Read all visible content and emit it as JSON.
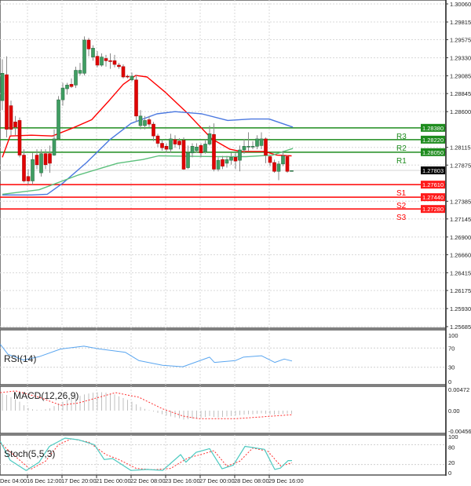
{
  "chart_data": {
    "type": "candlestick",
    "symbol_price_current": "1.27803",
    "price_axis": {
      "ylim": [
        1.25685,
        1.3006
      ],
      "ticks": [
        "1.30060",
        "1.29815",
        "1.29575",
        "1.29330",
        "1.29085",
        "1.28845",
        "1.28600",
        "1.28115",
        "1.27875",
        "1.27385",
        "1.27145",
        "1.26900",
        "1.26660",
        "1.26415",
        "1.26175",
        "1.25930",
        "1.25685"
      ]
    },
    "time_axis": {
      "labels": [
        "Dec 04:00",
        "16 Dec 12:00",
        "17 Dec 20:00",
        "21 Dec 00:00",
        "22 Dec 08:00",
        "23 Dec 16:00",
        "27 Dec 00:00",
        "28 Dec 08:00",
        "29 Dec 16:00"
      ],
      "label_candle_index": [
        0,
        7,
        15,
        23,
        31,
        39,
        47,
        55,
        63
      ]
    },
    "candles_ohlc": [
      [
        1.2875,
        1.2931,
        1.2862,
        1.2912
      ],
      [
        1.291,
        1.2935,
        1.2825,
        1.2836
      ],
      [
        1.2868,
        1.2875,
        1.2828,
        1.2836
      ],
      [
        1.2846,
        1.2854,
        1.2828,
        1.2839
      ],
      [
        1.2848,
        1.2852,
        1.2798,
        1.2801
      ],
      [
        1.2801,
        1.2809,
        1.2764,
        1.2766
      ],
      [
        1.2772,
        1.2782,
        1.2761,
        1.2766
      ],
      [
        1.2766,
        1.2804,
        1.2761,
        1.2795
      ],
      [
        1.2801,
        1.2809,
        1.2782,
        1.2788
      ],
      [
        1.2777,
        1.2809,
        1.2772,
        1.2803
      ],
      [
        1.2803,
        1.2809,
        1.2782,
        1.2788
      ],
      [
        1.2803,
        1.2814,
        1.2777,
        1.279
      ],
      [
        1.2801,
        1.2836,
        1.28,
        1.2823
      ],
      [
        1.2823,
        1.2881,
        1.2822,
        1.2876
      ],
      [
        1.2876,
        1.2899,
        1.2868,
        1.2892
      ],
      [
        1.2891,
        1.2899,
        1.2883,
        1.2896
      ],
      [
        1.2897,
        1.2905,
        1.2892,
        1.2894
      ],
      [
        1.2896,
        1.2921,
        1.2892,
        1.2916
      ],
      [
        1.2912,
        1.2926,
        1.2909,
        1.2916
      ],
      [
        1.2912,
        1.2962,
        1.2909,
        1.2957
      ],
      [
        1.2957,
        1.296,
        1.2935,
        1.2945
      ],
      [
        1.2934,
        1.295,
        1.2929,
        1.2946
      ],
      [
        1.2935,
        1.2942,
        1.292,
        1.2923
      ],
      [
        1.2923,
        1.2939,
        1.2921,
        1.2934
      ],
      [
        1.2932,
        1.2937,
        1.2921,
        1.2929
      ],
      [
        1.2929,
        1.2939,
        1.2918,
        1.2928
      ],
      [
        1.2929,
        1.2937,
        1.292,
        1.2924
      ],
      [
        1.2923,
        1.2926,
        1.2918,
        1.2921
      ],
      [
        1.2921,
        1.2924,
        1.2905,
        1.2907
      ],
      [
        1.2908,
        1.291,
        1.2905,
        1.2907
      ],
      [
        1.2903,
        1.2913,
        1.2901,
        1.2908
      ],
      [
        1.2903,
        1.291,
        1.2846,
        1.2854
      ],
      [
        1.2841,
        1.2862,
        1.2836,
        1.2854
      ],
      [
        1.2841,
        1.2854,
        1.2836,
        1.2848
      ],
      [
        1.2849,
        1.2854,
        1.2839,
        1.2843
      ],
      [
        1.2843,
        1.2846,
        1.282,
        1.2827
      ],
      [
        1.2827,
        1.283,
        1.2812,
        1.2817
      ],
      [
        1.2817,
        1.2822,
        1.2807,
        1.2811
      ],
      [
        1.2813,
        1.2817,
        1.2804,
        1.2809
      ],
      [
        1.2809,
        1.283,
        1.2804,
        1.2823
      ],
      [
        1.2822,
        1.2828,
        1.2811,
        1.2816
      ],
      [
        1.282,
        1.2824,
        1.2809,
        1.2815
      ],
      [
        1.2821,
        1.2825,
        1.2781,
        1.2782
      ],
      [
        1.2784,
        1.2814,
        1.2782,
        1.2804
      ],
      [
        1.2804,
        1.2817,
        1.2798,
        1.2813
      ],
      [
        1.2807,
        1.2817,
        1.2804,
        1.2812
      ],
      [
        1.2814,
        1.2817,
        1.2798,
        1.2804
      ],
      [
        1.2806,
        1.2822,
        1.2803,
        1.2816
      ],
      [
        1.2816,
        1.2841,
        1.2814,
        1.283
      ],
      [
        1.2829,
        1.2844,
        1.2779,
        1.2782
      ],
      [
        1.2782,
        1.2798,
        1.2779,
        1.2794
      ],
      [
        1.2795,
        1.28,
        1.2782,
        1.2786
      ],
      [
        1.279,
        1.28,
        1.2784,
        1.2795
      ],
      [
        1.2794,
        1.2804,
        1.2788,
        1.2798
      ],
      [
        1.2798,
        1.2804,
        1.2782,
        1.2793
      ],
      [
        1.2794,
        1.2814,
        1.2779,
        1.2808
      ],
      [
        1.2808,
        1.2823,
        1.2803,
        1.2813
      ],
      [
        1.2813,
        1.2832,
        1.2807,
        1.2813
      ],
      [
        1.2813,
        1.282,
        1.2809,
        1.2813
      ],
      [
        1.2813,
        1.2828,
        1.2809,
        1.2823
      ],
      [
        1.2814,
        1.2832,
        1.2809,
        1.2823
      ],
      [
        1.2823,
        1.2825,
        1.279,
        1.2801
      ],
      [
        1.2799,
        1.2801,
        1.2786,
        1.2791
      ],
      [
        1.2791,
        1.2795,
        1.2777,
        1.2779
      ],
      [
        1.2779,
        1.2793,
        1.2767,
        1.2789
      ],
      [
        1.2789,
        1.2807,
        1.2786,
        1.28
      ],
      [
        1.2799,
        1.2801,
        1.2777,
        1.2779
      ],
      [
        1.278,
        1.278,
        1.278,
        1.278
      ]
    ],
    "moving_averages": [
      {
        "color": "#ff0000",
        "points": [
          [
            1,
            1.2798
          ],
          [
            2.8,
            1.2827
          ],
          [
            7.7,
            1.2828
          ],
          [
            12.6,
            1.2827
          ],
          [
            17.4,
            1.2838
          ],
          [
            21.7,
            1.2849
          ],
          [
            25.9,
            1.2876
          ],
          [
            29,
            1.2897
          ],
          [
            31.9,
            1.2909
          ],
          [
            34.5,
            1.2907
          ],
          [
            38.6,
            1.2887
          ],
          [
            43.5,
            1.286
          ],
          [
            49.5,
            1.2823
          ],
          [
            53.7,
            1.2809
          ],
          [
            56.3,
            1.2806
          ],
          [
            61.7,
            1.2806
          ],
          [
            64.6,
            1.2801
          ],
          [
            68,
            1.28
          ]
        ]
      },
      {
        "color": "#4a78e0",
        "points": [
          [
            1,
            1.2747
          ],
          [
            7.7,
            1.2747
          ],
          [
            11.4,
            1.2748
          ],
          [
            15,
            1.2763
          ],
          [
            20.5,
            1.2791
          ],
          [
            25.9,
            1.2822
          ],
          [
            30.8,
            1.2844
          ],
          [
            36.8,
            1.2857
          ],
          [
            41,
            1.286
          ],
          [
            47.2,
            1.2857
          ],
          [
            53.2,
            1.2848
          ],
          [
            58.6,
            1.285
          ],
          [
            62.8,
            1.285
          ],
          [
            68.3,
            1.2839
          ]
        ]
      },
      {
        "color": "#5cc07c",
        "points": [
          [
            1,
            1.2748
          ],
          [
            9.5,
            1.2754
          ],
          [
            18.6,
            1.2774
          ],
          [
            27.7,
            1.279
          ],
          [
            33.5,
            1.2795
          ],
          [
            37.2,
            1.28
          ],
          [
            51.4,
            1.2799
          ],
          [
            57.4,
            1.2799
          ],
          [
            63.6,
            1.2801
          ],
          [
            68.3,
            1.281
          ]
        ]
      }
    ],
    "levels": [
      {
        "name": "R3",
        "value": 1.2838,
        "price_label": "1.28380",
        "color": "#1e8c1e"
      },
      {
        "name": "R2",
        "value": 1.2822,
        "price_label": "1.28220",
        "color": "#1e8c1e"
      },
      {
        "name": "R1",
        "value": 1.2805,
        "price_label": "1.28050",
        "color": "#1e8c1e"
      },
      {
        "name": "S1",
        "value": 1.2761,
        "price_label": "1.27610",
        "color": "#ff0000"
      },
      {
        "name": "S2",
        "value": 1.2744,
        "price_label": "1.27440",
        "color": "#ff0000"
      },
      {
        "name": "S3",
        "value": 1.2728,
        "price_label": "1.27280",
        "color": "#ff0000"
      }
    ],
    "rsi": {
      "label": "RSI(14)",
      "ticks": [
        "100",
        "70",
        "30",
        "0"
      ],
      "ylim": [
        0,
        100
      ],
      "color": "#5aa6f0",
      "points": [
        [
          0.5,
          78
        ],
        [
          2.3,
          57
        ],
        [
          5.9,
          45
        ],
        [
          9.5,
          52
        ],
        [
          14.5,
          68
        ],
        [
          19.9,
          74
        ],
        [
          23.5,
          68
        ],
        [
          29.5,
          61
        ],
        [
          32.6,
          44
        ],
        [
          38.1,
          34
        ],
        [
          42.8,
          31
        ],
        [
          49,
          51
        ],
        [
          50.1,
          40
        ],
        [
          55,
          44
        ],
        [
          56.8,
          51
        ],
        [
          61,
          54
        ],
        [
          64.1,
          40
        ],
        [
          66.3,
          47
        ],
        [
          68.1,
          43
        ]
      ]
    },
    "macd": {
      "label": "MACD(12,26,9)",
      "ticks": [
        "0.00472",
        "0.00",
        "-0.00456"
      ],
      "ylim": [
        -0.00456,
        0.00472
      ],
      "histogram": [
        0.0038,
        0.0035,
        0.003,
        0.0025,
        0.002,
        0.0012,
        0.0006,
        0.0003,
        0.0002,
        0.0001,
        0.0003,
        0.0005,
        0.001,
        0.0016,
        0.002,
        0.0024,
        0.0027,
        0.003,
        0.0033,
        0.0036,
        0.0038,
        0.004,
        0.0041,
        0.0041,
        0.004,
        0.0038,
        0.0036,
        0.0032,
        0.0028,
        0.0024,
        0.002,
        0.0014,
        0.0008,
        0.0004,
        0.0001,
        -0.0002,
        -0.0005,
        -0.0008,
        -0.0011,
        -0.0013,
        -0.0015,
        -0.0017,
        -0.002,
        -0.0019,
        -0.0018,
        -0.0017,
        -0.0016,
        -0.0014,
        -0.0012,
        -0.0014,
        -0.0015,
        -0.0014,
        -0.0013,
        -0.0012,
        -0.0011,
        -0.001,
        -0.0009,
        -0.0008,
        -0.0008,
        -0.0007,
        -0.0006,
        -0.0007,
        -0.0008,
        -0.0009,
        -0.0008,
        -0.0007,
        -0.0007,
        -0.0007
      ],
      "signal": [
        [
          0.5,
          0.004
        ],
        [
          4.1,
          0.0044
        ],
        [
          9.5,
          0.003
        ],
        [
          14.5,
          0.0012
        ],
        [
          18.6,
          0.0017
        ],
        [
          27.2,
          0.004
        ],
        [
          32.6,
          0.003
        ],
        [
          38.1,
          0.0004
        ],
        [
          42.8,
          -0.0012
        ],
        [
          46.5,
          -0.0018
        ],
        [
          55,
          -0.0018
        ],
        [
          61,
          -0.0014
        ],
        [
          68.3,
          -0.0009
        ]
      ]
    },
    "stoch": {
      "label": "Stoch(5,5,3)",
      "ticks": [
        "100",
        "80",
        "20",
        "0"
      ],
      "ylim": [
        0,
        100
      ],
      "main_color": "#4cc9c0",
      "signal_color": "#ff3030",
      "main": [
        [
          0.5,
          90
        ],
        [
          2.8,
          33
        ],
        [
          6.5,
          2
        ],
        [
          9.5,
          27
        ],
        [
          11.9,
          75
        ],
        [
          15.5,
          100
        ],
        [
          18.6,
          95
        ],
        [
          22.3,
          80
        ],
        [
          24.6,
          35
        ],
        [
          26.5,
          38
        ],
        [
          30.8,
          2
        ],
        [
          34.5,
          5
        ],
        [
          38.1,
          2
        ],
        [
          42.3,
          50
        ],
        [
          43.5,
          27
        ],
        [
          45.9,
          57
        ],
        [
          49,
          68
        ],
        [
          51.9,
          7
        ],
        [
          54.5,
          18
        ],
        [
          57.2,
          75
        ],
        [
          61.7,
          66
        ],
        [
          64.1,
          5
        ],
        [
          65.4,
          9
        ],
        [
          67.2,
          32
        ],
        [
          68.1,
          32
        ]
      ],
      "signal": [
        [
          0.5,
          85
        ],
        [
          3.5,
          50
        ],
        [
          7.5,
          5
        ],
        [
          11,
          30
        ],
        [
          14,
          80
        ],
        [
          17,
          98
        ],
        [
          21,
          88
        ],
        [
          25,
          50
        ],
        [
          28,
          35
        ],
        [
          32,
          8
        ],
        [
          36,
          4
        ],
        [
          40,
          8
        ],
        [
          44,
          40
        ],
        [
          47,
          50
        ],
        [
          50,
          62
        ],
        [
          53,
          15
        ],
        [
          56,
          30
        ],
        [
          59,
          70
        ],
        [
          62.5,
          60
        ],
        [
          65.5,
          15
        ],
        [
          68.1,
          25
        ]
      ]
    }
  }
}
